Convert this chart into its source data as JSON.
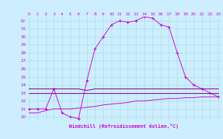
{
  "xlabel": "Windchill (Refroidissement éolien,°C)",
  "bg_color": "#cceeff",
  "grid_color": "#aadddd",
  "line_color": "#cc00cc",
  "line_color2": "#880088",
  "xmin": 0,
  "xmax": 23,
  "ymin": 19.5,
  "ymax": 32.5,
  "yticks": [
    20,
    21,
    22,
    23,
    24,
    25,
    26,
    27,
    28,
    29,
    30,
    31,
    32
  ],
  "xticks": [
    0,
    1,
    2,
    3,
    4,
    5,
    6,
    7,
    8,
    9,
    10,
    11,
    12,
    13,
    14,
    15,
    16,
    17,
    18,
    19,
    20,
    21,
    22,
    23
  ],
  "series1_x": [
    0,
    1,
    2,
    3,
    4,
    5,
    6,
    7,
    8,
    9,
    10,
    11,
    12,
    13,
    14,
    15,
    16,
    17,
    18,
    19,
    20,
    21,
    22,
    23
  ],
  "series1_y": [
    21.0,
    21.0,
    21.0,
    23.5,
    20.5,
    20.0,
    19.8,
    24.5,
    28.5,
    30.0,
    31.5,
    32.0,
    31.8,
    32.0,
    32.5,
    32.3,
    31.5,
    31.2,
    28.0,
    25.0,
    24.0,
    23.5,
    23.0,
    22.5
  ],
  "series2_x": [
    0,
    1,
    2,
    3,
    4,
    5,
    6,
    7,
    8,
    9,
    10,
    11,
    12,
    13,
    14,
    15,
    16,
    17,
    18,
    19,
    20,
    21,
    22,
    23
  ],
  "series2_y": [
    23.5,
    23.5,
    23.5,
    23.5,
    23.5,
    23.5,
    23.5,
    23.3,
    23.5,
    23.5,
    23.5,
    23.5,
    23.5,
    23.5,
    23.5,
    23.5,
    23.5,
    23.5,
    23.5,
    23.5,
    23.5,
    23.5,
    23.5,
    23.5
  ],
  "series3_x": [
    0,
    1,
    2,
    3,
    4,
    5,
    6,
    7,
    8,
    9,
    10,
    11,
    12,
    13,
    14,
    15,
    16,
    17,
    18,
    19,
    20,
    21,
    22,
    23
  ],
  "series3_y": [
    23.0,
    23.0,
    23.0,
    23.0,
    23.0,
    23.0,
    23.0,
    23.0,
    23.0,
    23.0,
    23.0,
    23.0,
    23.0,
    23.0,
    23.0,
    23.0,
    23.0,
    23.0,
    23.0,
    23.0,
    23.0,
    23.0,
    23.0,
    23.0
  ],
  "series4_x": [
    0,
    1,
    2,
    3,
    4,
    5,
    6,
    7,
    8,
    9,
    10,
    11,
    12,
    13,
    14,
    15,
    16,
    17,
    18,
    19,
    20,
    21,
    22,
    23
  ],
  "series4_y": [
    20.5,
    20.5,
    20.8,
    21.0,
    21.0,
    21.0,
    21.1,
    21.2,
    21.3,
    21.5,
    21.6,
    21.7,
    21.8,
    22.0,
    22.0,
    22.1,
    22.2,
    22.3,
    22.3,
    22.4,
    22.4,
    22.5,
    22.5,
    22.5
  ]
}
